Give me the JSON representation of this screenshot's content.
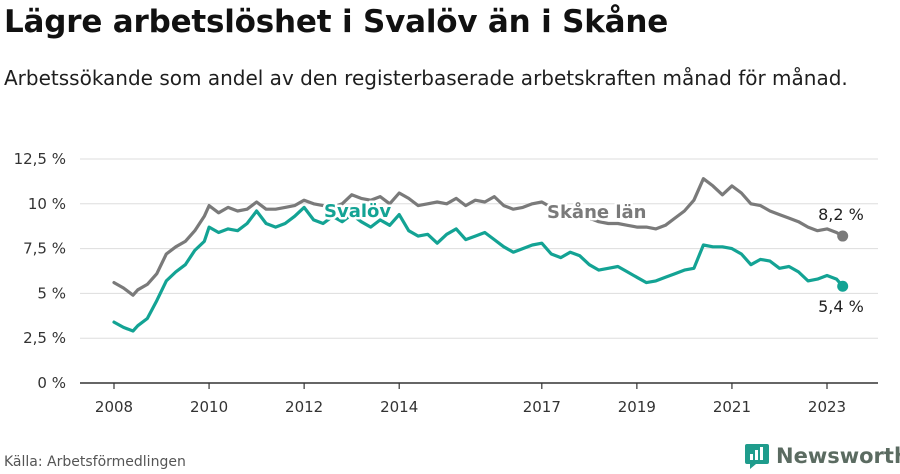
{
  "header": {
    "title": "Lägre arbetslöshet i Svalöv än i Skåne",
    "subtitle": "Arbetssökande som andel av den registerbaserade arbetskraften månad för månad."
  },
  "footer": {
    "source": "Källa: Arbetsförmedlingen",
    "brand": "Newsworthy"
  },
  "colors": {
    "skane": "#7a7a7a",
    "svalov": "#13a394",
    "grid": "#dddddd",
    "axis": "#333333",
    "brand_icon": "#1f9c8c"
  },
  "chart_data": {
    "type": "line",
    "title": "Lägre arbetslöshet i Svalöv än i Skåne",
    "xlabel": "",
    "ylabel": "",
    "x_range": [
      2008.0,
      2023.5
    ],
    "ylim": [
      0,
      12.5
    ],
    "y_ticks": [
      {
        "value": 0,
        "label": "0 %"
      },
      {
        "value": 2.5,
        "label": "2,5 %"
      },
      {
        "value": 5,
        "label": "5 %"
      },
      {
        "value": 7.5,
        "label": "7,5 %"
      },
      {
        "value": 10,
        "label": "10 %"
      },
      {
        "value": 12.5,
        "label": "12,5 %"
      }
    ],
    "x_ticks": [
      {
        "value": 2008,
        "label": "2008"
      },
      {
        "value": 2010,
        "label": "2010"
      },
      {
        "value": 2012,
        "label": "2012"
      },
      {
        "value": 2014,
        "label": "2014"
      },
      {
        "value": 2017,
        "label": "2017"
      },
      {
        "value": 2019,
        "label": "2019"
      },
      {
        "value": 2021,
        "label": "2021"
      },
      {
        "value": 2023,
        "label": "2023"
      }
    ],
    "grid": true,
    "series": [
      {
        "name": "Skåne län",
        "label": "Skåne län",
        "end_label": "8,2 %",
        "color_key": "skane",
        "x": [
          2008.0,
          2008.2,
          2008.4,
          2008.5,
          2008.7,
          2008.9,
          2009.1,
          2009.3,
          2009.5,
          2009.7,
          2009.9,
          2010.0,
          2010.2,
          2010.4,
          2010.6,
          2010.8,
          2011.0,
          2011.2,
          2011.4,
          2011.6,
          2011.8,
          2012.0,
          2012.2,
          2012.4,
          2012.6,
          2012.8,
          2013.0,
          2013.2,
          2013.4,
          2013.6,
          2013.8,
          2014.0,
          2014.2,
          2014.4,
          2014.6,
          2014.8,
          2015.0,
          2015.2,
          2015.4,
          2015.6,
          2015.8,
          2016.0,
          2016.2,
          2016.4,
          2016.6,
          2016.8,
          2017.0,
          2017.2,
          2017.4,
          2017.6,
          2017.8,
          2018.0,
          2018.2,
          2018.4,
          2018.6,
          2018.8,
          2019.0,
          2019.2,
          2019.4,
          2019.6,
          2019.8,
          2020.0,
          2020.2,
          2020.4,
          2020.6,
          2020.8,
          2021.0,
          2021.2,
          2021.4,
          2021.6,
          2021.8,
          2022.0,
          2022.2,
          2022.4,
          2022.6,
          2022.8,
          2023.0,
          2023.2,
          2023.33
        ],
        "values": [
          5.6,
          5.3,
          4.9,
          5.2,
          5.5,
          6.1,
          7.2,
          7.6,
          7.9,
          8.5,
          9.3,
          9.9,
          9.5,
          9.8,
          9.6,
          9.7,
          10.1,
          9.7,
          9.7,
          9.8,
          9.9,
          10.2,
          10.0,
          9.9,
          9.8,
          10.0,
          10.5,
          10.3,
          10.2,
          10.4,
          10.0,
          10.6,
          10.3,
          9.9,
          10.0,
          10.1,
          10.0,
          10.3,
          9.9,
          10.2,
          10.1,
          10.4,
          9.9,
          9.7,
          9.8,
          10.0,
          10.1,
          9.8,
          9.6,
          9.5,
          9.4,
          9.2,
          9.0,
          8.9,
          8.9,
          8.8,
          8.7,
          8.7,
          8.6,
          8.8,
          9.2,
          9.6,
          10.2,
          11.4,
          11.0,
          10.5,
          11.0,
          10.6,
          10.0,
          9.9,
          9.6,
          9.4,
          9.2,
          9.0,
          8.7,
          8.5,
          8.6,
          8.4,
          8.2
        ]
      },
      {
        "name": "Svalöv",
        "label": "Svalöv",
        "end_label": "5,4 %",
        "color_key": "svalov",
        "x": [
          2008.0,
          2008.2,
          2008.4,
          2008.5,
          2008.7,
          2008.9,
          2009.1,
          2009.3,
          2009.5,
          2009.7,
          2009.9,
          2010.0,
          2010.2,
          2010.4,
          2010.6,
          2010.8,
          2011.0,
          2011.2,
          2011.4,
          2011.6,
          2011.8,
          2012.0,
          2012.2,
          2012.4,
          2012.6,
          2012.8,
          2013.0,
          2013.2,
          2013.4,
          2013.6,
          2013.8,
          2014.0,
          2014.2,
          2014.4,
          2014.6,
          2014.8,
          2015.0,
          2015.2,
          2015.4,
          2015.6,
          2015.8,
          2016.0,
          2016.2,
          2016.4,
          2016.6,
          2016.8,
          2017.0,
          2017.2,
          2017.4,
          2017.6,
          2017.8,
          2018.0,
          2018.2,
          2018.4,
          2018.6,
          2018.8,
          2019.0,
          2019.2,
          2019.4,
          2019.6,
          2019.8,
          2020.0,
          2020.2,
          2020.4,
          2020.6,
          2020.8,
          2021.0,
          2021.2,
          2021.4,
          2021.6,
          2021.8,
          2022.0,
          2022.2,
          2022.4,
          2022.6,
          2022.8,
          2023.0,
          2023.2,
          2023.33
        ],
        "values": [
          3.4,
          3.1,
          2.9,
          3.2,
          3.6,
          4.6,
          5.7,
          6.2,
          6.6,
          7.4,
          7.9,
          8.7,
          8.4,
          8.6,
          8.5,
          8.9,
          9.6,
          8.9,
          8.7,
          8.9,
          9.3,
          9.8,
          9.1,
          8.9,
          9.3,
          9.0,
          9.4,
          9.0,
          8.7,
          9.1,
          8.8,
          9.4,
          8.5,
          8.2,
          8.3,
          7.8,
          8.3,
          8.6,
          8.0,
          8.2,
          8.4,
          8.0,
          7.6,
          7.3,
          7.5,
          7.7,
          7.8,
          7.2,
          7.0,
          7.3,
          7.1,
          6.6,
          6.3,
          6.4,
          6.5,
          6.2,
          5.9,
          5.6,
          5.7,
          5.9,
          6.1,
          6.3,
          6.4,
          7.7,
          7.6,
          7.6,
          7.5,
          7.2,
          6.6,
          6.9,
          6.8,
          6.4,
          6.5,
          6.2,
          5.7,
          5.8,
          6.0,
          5.8,
          5.4
        ]
      }
    ]
  }
}
